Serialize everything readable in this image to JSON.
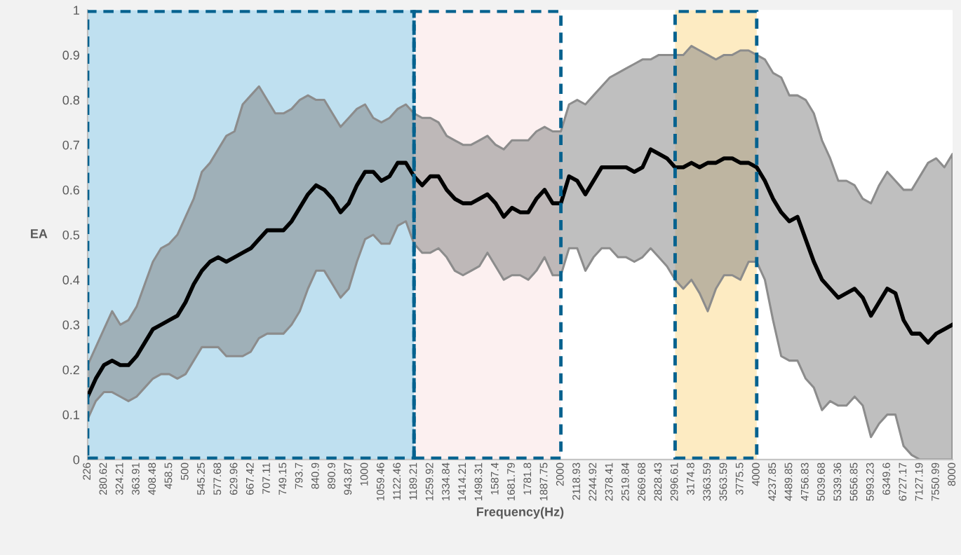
{
  "chart_data": {
    "type": "line",
    "xlabel": "Frequency(Hz)",
    "ylabel": "EA",
    "categories": [
      "226",
      null,
      "280.62",
      null,
      "324.21",
      null,
      "363.91",
      null,
      "408.48",
      null,
      "458.5",
      null,
      "500",
      null,
      "545.25",
      null,
      "577.68",
      null,
      "629.96",
      null,
      "667.42",
      null,
      "707.11",
      null,
      "749.15",
      null,
      "793.7",
      null,
      "840.9",
      null,
      "890.9",
      null,
      "943.87",
      null,
      "1000",
      null,
      "1059.46",
      null,
      "1122.46",
      null,
      "1189.21",
      null,
      "1259.92",
      null,
      "1334.84",
      null,
      "1414.21",
      null,
      "1498.31",
      null,
      "1587.4",
      null,
      "1681.79",
      null,
      "1781.8",
      null,
      "1887.75",
      null,
      "2000",
      null,
      "2118.93",
      null,
      "2244.92",
      null,
      "2378.41",
      null,
      "2519.84",
      null,
      "2669.68",
      null,
      "2828.43",
      null,
      "2996.61",
      null,
      "3174.8",
      null,
      "3363.59",
      null,
      "3563.59",
      null,
      "3775.5",
      null,
      "4000",
      null,
      "4237.85",
      null,
      "4489.85",
      null,
      "4756.83",
      null,
      "5039.68",
      null,
      "5339.36",
      null,
      "5656.85",
      null,
      "5993.23",
      null,
      "6349.6",
      null,
      "6727.17",
      null,
      "7127.19",
      null,
      "7550.99",
      null,
      "8000"
    ],
    "series": [
      {
        "color": "#000000",
        "values": [
          0.14,
          0.18,
          0.21,
          0.22,
          0.21,
          0.21,
          0.23,
          0.26,
          0.29,
          0.3,
          0.31,
          0.32,
          0.35,
          0.39,
          0.42,
          0.44,
          0.45,
          0.44,
          0.45,
          0.46,
          0.47,
          0.49,
          0.51,
          0.51,
          0.51,
          0.53,
          0.56,
          0.59,
          0.61,
          0.6,
          0.58,
          0.55,
          0.57,
          0.61,
          0.64,
          0.64,
          0.62,
          0.63,
          0.66,
          0.66,
          0.63,
          0.61,
          0.63,
          0.63,
          0.6,
          0.58,
          0.57,
          0.57,
          0.58,
          0.59,
          0.57,
          0.54,
          0.56,
          0.55,
          0.55,
          0.58,
          0.6,
          0.57,
          0.57,
          0.63,
          0.62,
          0.59,
          0.62,
          0.65,
          0.65,
          0.65,
          0.65,
          0.64,
          0.65,
          0.69,
          0.68,
          0.67,
          0.65,
          0.65,
          0.66,
          0.65,
          0.66,
          0.66,
          0.67,
          0.67,
          0.66,
          0.66,
          0.65,
          0.62,
          0.58,
          0.55,
          0.53,
          0.54,
          0.49,
          0.44,
          0.4,
          0.38,
          0.36,
          0.37,
          0.38,
          0.36,
          0.32,
          0.35,
          0.38,
          0.37,
          0.31,
          0.28,
          0.28,
          0.26,
          0.28,
          0.29,
          0.3
        ],
        "upper": [
          0.21,
          0.25,
          0.29,
          0.33,
          0.3,
          0.31,
          0.34,
          0.39,
          0.44,
          0.47,
          0.48,
          0.5,
          0.54,
          0.58,
          0.64,
          0.66,
          0.69,
          0.72,
          0.73,
          0.79,
          0.81,
          0.83,
          0.8,
          0.77,
          0.77,
          0.78,
          0.8,
          0.81,
          0.8,
          0.8,
          0.77,
          0.74,
          0.76,
          0.78,
          0.79,
          0.76,
          0.75,
          0.76,
          0.78,
          0.79,
          0.77,
          0.76,
          0.76,
          0.75,
          0.72,
          0.71,
          0.7,
          0.7,
          0.71,
          0.72,
          0.7,
          0.69,
          0.71,
          0.71,
          0.71,
          0.73,
          0.74,
          0.73,
          0.73,
          0.79,
          0.8,
          0.79,
          0.81,
          0.83,
          0.85,
          0.86,
          0.87,
          0.88,
          0.89,
          0.89,
          0.9,
          0.9,
          0.9,
          0.9,
          0.92,
          0.91,
          0.9,
          0.89,
          0.9,
          0.9,
          0.91,
          0.91,
          0.9,
          0.89,
          0.86,
          0.85,
          0.81,
          0.81,
          0.8,
          0.77,
          0.71,
          0.67,
          0.62,
          0.62,
          0.61,
          0.58,
          0.57,
          0.61,
          0.64,
          0.62,
          0.6,
          0.6,
          0.63,
          0.66,
          0.67,
          0.65,
          0.68
        ],
        "lower": [
          0.09,
          0.13,
          0.15,
          0.15,
          0.14,
          0.13,
          0.14,
          0.16,
          0.18,
          0.19,
          0.19,
          0.18,
          0.19,
          0.22,
          0.25,
          0.25,
          0.25,
          0.23,
          0.23,
          0.23,
          0.24,
          0.27,
          0.28,
          0.28,
          0.28,
          0.3,
          0.33,
          0.38,
          0.42,
          0.42,
          0.39,
          0.36,
          0.38,
          0.44,
          0.49,
          0.5,
          0.48,
          0.48,
          0.52,
          0.53,
          0.48,
          0.46,
          0.46,
          0.47,
          0.45,
          0.42,
          0.41,
          0.42,
          0.43,
          0.46,
          0.43,
          0.4,
          0.41,
          0.41,
          0.4,
          0.42,
          0.45,
          0.41,
          0.41,
          0.47,
          0.47,
          0.42,
          0.45,
          0.47,
          0.47,
          0.45,
          0.45,
          0.44,
          0.45,
          0.47,
          0.45,
          0.43,
          0.4,
          0.38,
          0.4,
          0.37,
          0.33,
          0.38,
          0.41,
          0.41,
          0.4,
          0.44,
          0.44,
          0.4,
          0.31,
          0.23,
          0.22,
          0.22,
          0.18,
          0.16,
          0.11,
          0.13,
          0.12,
          0.12,
          0.14,
          0.12,
          0.05,
          0.08,
          0.1,
          0.1,
          0.03,
          0.01,
          0,
          0,
          0,
          0,
          0
        ]
      }
    ],
    "ylim": [
      0,
      1
    ],
    "yticks": [
      0,
      0.1,
      0.2,
      0.3,
      0.4,
      0.5,
      0.6,
      0.7,
      0.8,
      0.9,
      1
    ],
    "grid": false,
    "marker": "none",
    "line_style": "solid",
    "bands": [
      {
        "axis": "x",
        "from": "226",
        "to": "1189.21",
        "color": "#bfe0f0"
      },
      {
        "axis": "x",
        "from": "1189.21",
        "to": "2000",
        "color": "#fcf0f0"
      },
      {
        "axis": "x",
        "from": "2996.61",
        "to": "4000",
        "color": "#fdebc2"
      }
    ]
  }
}
